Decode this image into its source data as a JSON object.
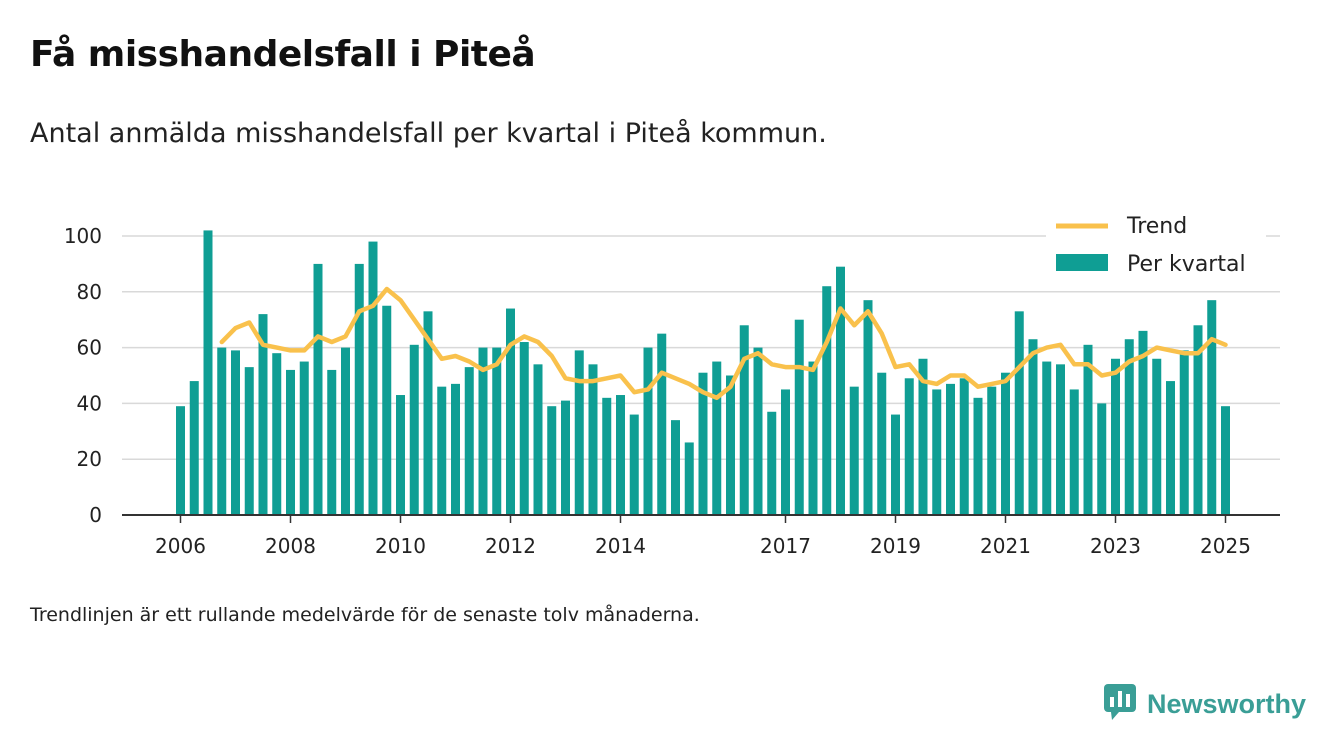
{
  "title": "Få misshandelsfall i Piteå",
  "subtitle": "Antal anmälda misshandelsfall per kvartal i Piteå kommun.",
  "footnote": "Trendlinjen är ett rullande medelvärde för de senaste tolv månaderna.",
  "brand": {
    "name": "Newsworthy",
    "icon": "newsworthy-logo-icon"
  },
  "colors": {
    "bars": "#0f9e94",
    "trend": "#f9c14c",
    "grid": "#d9d9d9",
    "axis": "#333333",
    "brand": "#3a9e96"
  },
  "chart_data": {
    "type": "bar",
    "x_start": "2006 Q1",
    "x_frequency": "quarterly",
    "ylim": [
      0,
      100
    ],
    "yticks": [
      0,
      20,
      40,
      60,
      80,
      100
    ],
    "xticks": [
      "2006",
      "2008",
      "2010",
      "2012",
      "2014",
      "2017",
      "2019",
      "2021",
      "2023",
      "2025"
    ],
    "grid": true,
    "legend_position": "top-right",
    "series": [
      {
        "name": "Per kvartal",
        "type": "bar",
        "values": [
          39,
          48,
          102,
          60,
          59,
          53,
          72,
          58,
          52,
          55,
          90,
          52,
          60,
          90,
          98,
          75,
          43,
          61,
          73,
          46,
          47,
          53,
          60,
          60,
          74,
          62,
          54,
          39,
          41,
          59,
          54,
          42,
          43,
          36,
          60,
          65,
          34,
          26,
          51,
          55,
          50,
          68,
          60,
          37,
          45,
          70,
          55,
          82,
          89,
          46,
          77,
          51,
          36,
          49,
          56,
          45,
          47,
          49,
          42,
          46,
          51,
          73,
          63,
          55,
          54,
          45,
          61,
          40,
          56,
          63,
          66,
          56,
          48,
          59,
          68,
          77,
          39
        ]
      },
      {
        "name": "Trend",
        "type": "line",
        "start_index": 3,
        "values": [
          62,
          67,
          69,
          61,
          60,
          59,
          59,
          64,
          62,
          64,
          73,
          75,
          81,
          77,
          70,
          63,
          56,
          57,
          55,
          52,
          54,
          61,
          64,
          62,
          57,
          49,
          48,
          48,
          49,
          50,
          44,
          45,
          51,
          49,
          47,
          44,
          42,
          46,
          56,
          58,
          54,
          53,
          53,
          52,
          62,
          74,
          68,
          73,
          65,
          53,
          54,
          48,
          47,
          50,
          50,
          46,
          47,
          48,
          53,
          58,
          60,
          61,
          54,
          54,
          50,
          51,
          55,
          57,
          60,
          59,
          58,
          58,
          63,
          61
        ]
      }
    ]
  }
}
